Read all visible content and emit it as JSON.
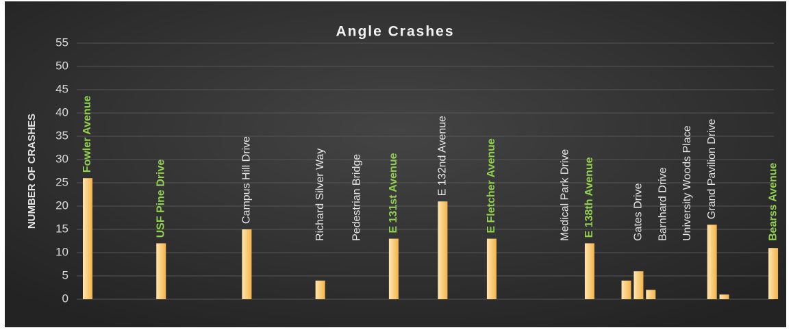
{
  "chart_data": {
    "type": "bar",
    "title": "Angle Crashes",
    "y_label": "NUMBER OF CRASHES",
    "categories": [
      "Fowler Avenue",
      null,
      null,
      null,
      null,
      null,
      "USF Pine Drive",
      null,
      null,
      null,
      null,
      null,
      null,
      "Campus Hill Drive",
      null,
      null,
      null,
      null,
      null,
      "Richard Silver Way",
      null,
      null,
      "Pedestrian Bridge",
      null,
      null,
      "E 131st Avenue",
      null,
      null,
      null,
      "E 132nd Avenue",
      null,
      null,
      null,
      "E Fletcher Avenue",
      null,
      null,
      null,
      null,
      null,
      "Medical Park Drive",
      null,
      "E 138th Avenue",
      null,
      null,
      null,
      "Gates Drive",
      null,
      "Barnhard Drive",
      null,
      "University Woods Place",
      null,
      "Grand Pavilion Drive",
      null,
      null,
      null,
      null,
      "Bearss Avenue"
    ],
    "values": [
      26,
      0,
      0,
      0,
      0,
      0,
      12,
      0,
      0,
      0,
      0,
      0,
      0,
      15,
      0,
      0,
      0,
      0,
      0,
      4,
      0,
      0,
      0,
      0,
      0,
      13,
      0,
      0,
      0,
      21,
      0,
      0,
      0,
      13,
      0,
      0,
      0,
      0,
      0,
      0,
      0,
      12,
      0,
      0,
      4,
      6,
      2,
      0,
      0,
      0,
      0,
      16,
      1,
      0,
      0,
      0,
      11
    ],
    "color": "#f7c46a",
    "highlight_categories": [
      0,
      6,
      25,
      33,
      41,
      56
    ],
    "highlight_color": "#92d050",
    "ylim": [
      0,
      55
    ],
    "yticks": [
      0,
      5,
      10,
      15,
      20,
      25,
      30,
      35,
      40,
      45,
      50,
      55
    ],
    "grid": true
  }
}
